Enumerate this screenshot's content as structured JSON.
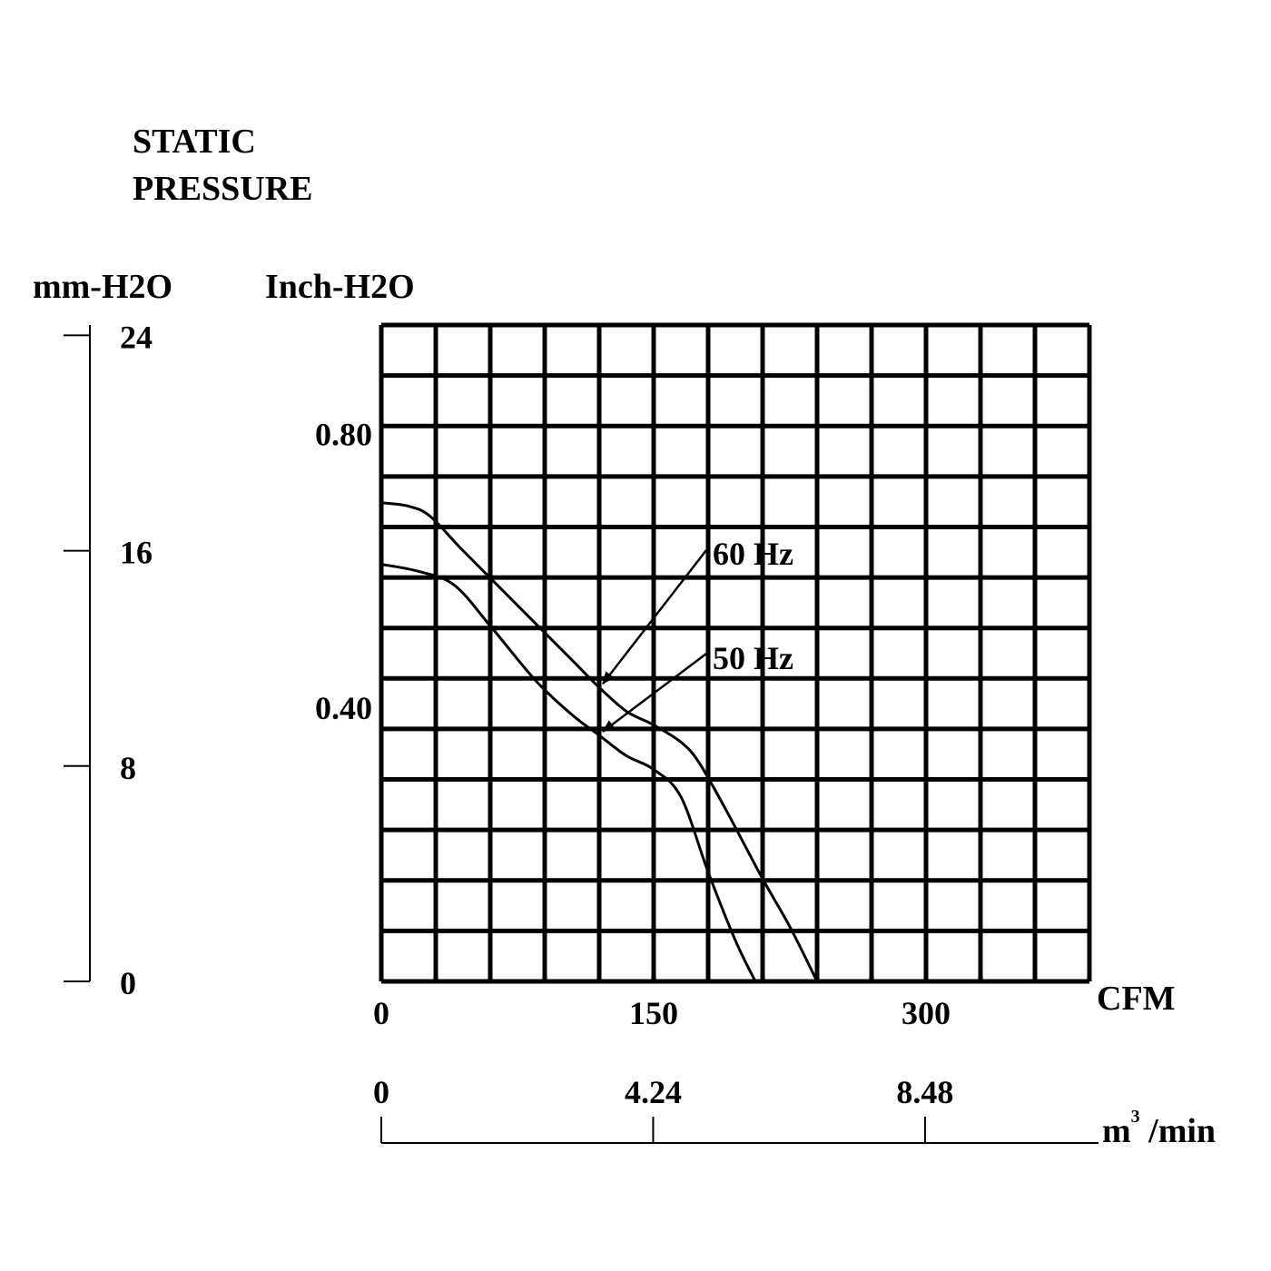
{
  "title_lines": [
    "STATIC",
    "PRESSURE"
  ],
  "left_axis": {
    "unit": "mm-H2O",
    "ticks": [
      "24",
      "16",
      "8",
      "0"
    ]
  },
  "chart_data": {
    "type": "line",
    "title": "STATIC PRESSURE",
    "ylabel": "Inch-H2O",
    "xlabel": "CFM",
    "x_secondary_label": "m3 /min",
    "y_secondary_label": "mm-H2O",
    "xlim": [
      0,
      390
    ],
    "ylim": [
      0,
      0.96
    ],
    "grid": true,
    "x_ticks": [
      "0",
      "150",
      "300"
    ],
    "x_secondary_ticks": [
      "0",
      "4.24",
      "8.48"
    ],
    "y_ticks": [
      "0.80",
      "0.40"
    ],
    "series": [
      {
        "name": "60 Hz",
        "x": [
          0,
          15,
          27,
          45,
          75,
          105,
          120,
          135,
          150,
          165,
          175,
          190,
          210,
          225,
          240
        ],
        "y": [
          0.7,
          0.695,
          0.68,
          0.63,
          0.55,
          0.47,
          0.43,
          0.395,
          0.375,
          0.35,
          0.32,
          0.25,
          0.15,
          0.08,
          0.0
        ]
      },
      {
        "name": "50 Hz",
        "x": [
          0,
          20,
          40,
          60,
          85,
          105,
          120,
          135,
          150,
          165,
          180,
          195,
          206
        ],
        "y": [
          0.61,
          0.6,
          0.58,
          0.52,
          0.44,
          0.39,
          0.36,
          0.33,
          0.31,
          0.27,
          0.16,
          0.06,
          0.0
        ]
      }
    ],
    "annotations": [
      "60 Hz",
      "50 Hz"
    ]
  }
}
